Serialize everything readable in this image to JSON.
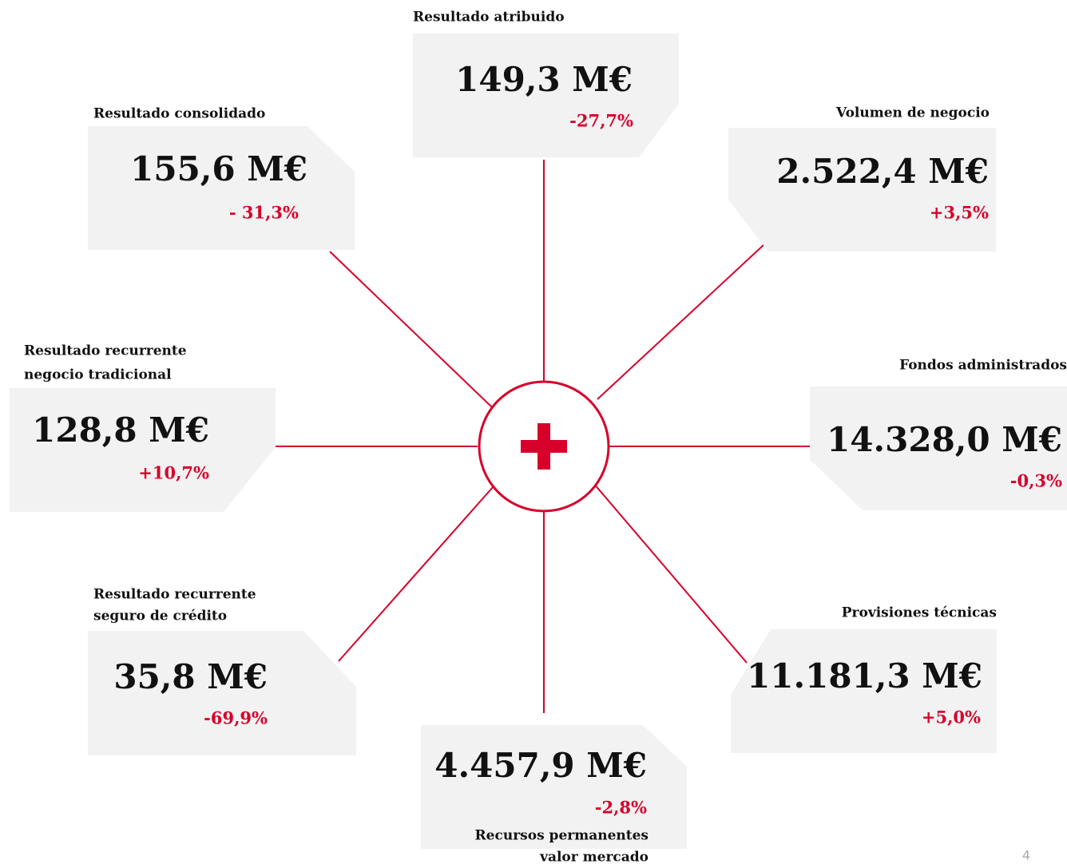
{
  "nodes": [
    {
      "label": [
        "Resultado atribuido"
      ],
      "value": "149,3 M€",
      "change": "-27,7%"
    },
    {
      "label": [
        "Resultado consolidado"
      ],
      "value": "155,6 M€",
      "change": "- 31,3%"
    },
    {
      "label": [
        "Volumen de negocio"
      ],
      "value": "2.522,4 M€",
      "change": "+3,5%"
    },
    {
      "label": [
        "Resultado recurrente",
        "negocio tradicional"
      ],
      "value": "128,8 M€",
      "change": "+10,7%"
    },
    {
      "label": [
        "Fondos administrados"
      ],
      "value": "14.328,0 M€",
      "change": "-0,3%"
    },
    {
      "label": [
        "Resultado recurrente",
        "seguro de crédito"
      ],
      "value": "35,8 M€",
      "change": "-69,9%"
    },
    {
      "label": [
        "Provisiones técnicas"
      ],
      "value": "11.181,3 M€",
      "change": "+5,0%"
    },
    {
      "label": [
        "Recursos permanentes",
        "valor mercado"
      ],
      "value": "4.457,9 M€",
      "change": "-2,8%"
    }
  ],
  "page_number": "4"
}
